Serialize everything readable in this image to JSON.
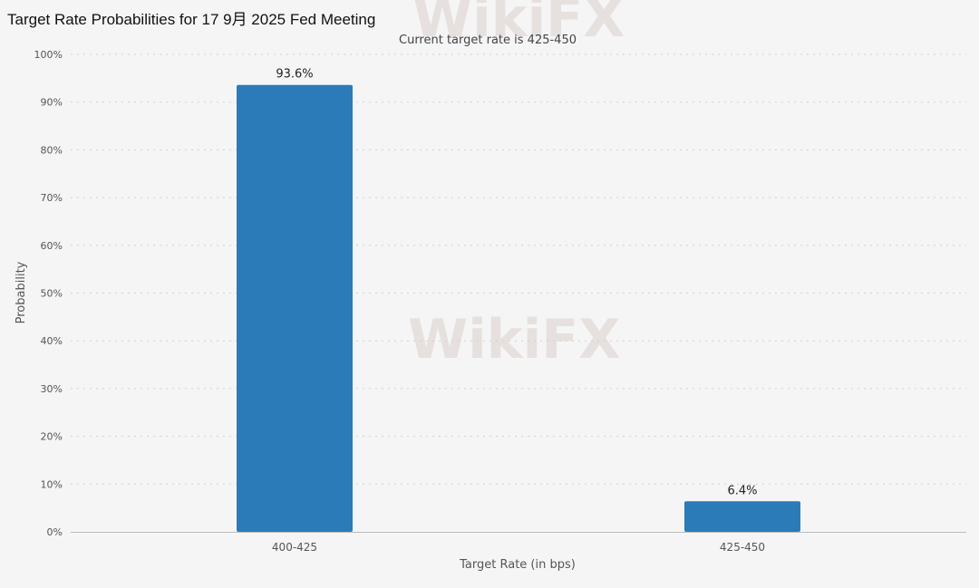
{
  "page": {
    "title": "Target Rate Probabilities for 17 9月 2025 Fed Meeting"
  },
  "watermark": {
    "text": "WikiFX"
  },
  "chart_data": {
    "type": "bar",
    "subtitle": "Current target rate is 425-450",
    "xlabel": "Target Rate (in bps)",
    "ylabel": "Probability",
    "categories": [
      "400-425",
      "425-450"
    ],
    "values": [
      93.6,
      6.4
    ],
    "data_labels": [
      "93.6%",
      "6.4%"
    ],
    "ylim": [
      0,
      100
    ],
    "yticks": [
      0,
      10,
      20,
      30,
      40,
      50,
      60,
      70,
      80,
      90,
      100
    ],
    "ytick_labels": [
      "0%",
      "10%",
      "20%",
      "30%",
      "40%",
      "50%",
      "60%",
      "70%",
      "80%",
      "90%",
      "100%"
    ],
    "grid": true,
    "legend": "none",
    "bar_color": "#2b7bb9"
  }
}
